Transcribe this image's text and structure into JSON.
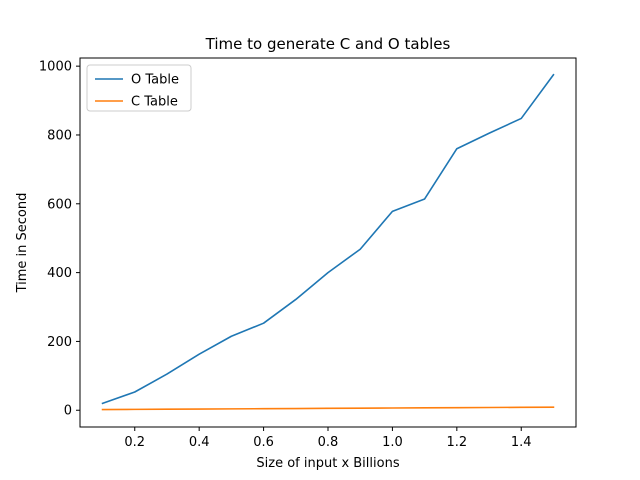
{
  "chart_data": {
    "type": "line",
    "title": "Time to generate C and O tables",
    "xlabel": "Size of input x Billions",
    "ylabel": "Time in Second",
    "xlim": [
      0.03,
      1.57
    ],
    "ylim": [
      -48.7,
      1023.7
    ],
    "xticks": [
      0.2,
      0.4,
      0.6,
      0.8,
      1.0,
      1.2,
      1.4
    ],
    "xtick_labels": [
      "0.2",
      "0.4",
      "0.6",
      "0.8",
      "1.0",
      "1.2",
      "1.4"
    ],
    "yticks": [
      0,
      200,
      400,
      600,
      800,
      1000
    ],
    "ytick_labels": [
      "0",
      "200",
      "400",
      "600",
      "800",
      "1000"
    ],
    "grid": false,
    "legend_position": "top-left",
    "x": [
      0.1,
      0.2,
      0.3,
      0.4,
      0.5,
      0.6,
      0.7,
      0.8,
      0.9,
      1.0,
      1.1,
      1.2,
      1.3,
      1.4,
      1.5
    ],
    "series": [
      {
        "name": "O Table",
        "color": "#1f77b4",
        "values": [
          20,
          53,
          105,
          163,
          215,
          253,
          322,
          400,
          468,
          578,
          614,
          760,
          805,
          848,
          975
        ]
      },
      {
        "name": "C Table",
        "color": "#ff7f0e",
        "values": [
          2,
          2.5,
          3,
          3.5,
          4,
          4.5,
          5,
          5.5,
          6,
          6.5,
          7,
          7.5,
          8,
          8.5,
          9
        ]
      }
    ]
  }
}
